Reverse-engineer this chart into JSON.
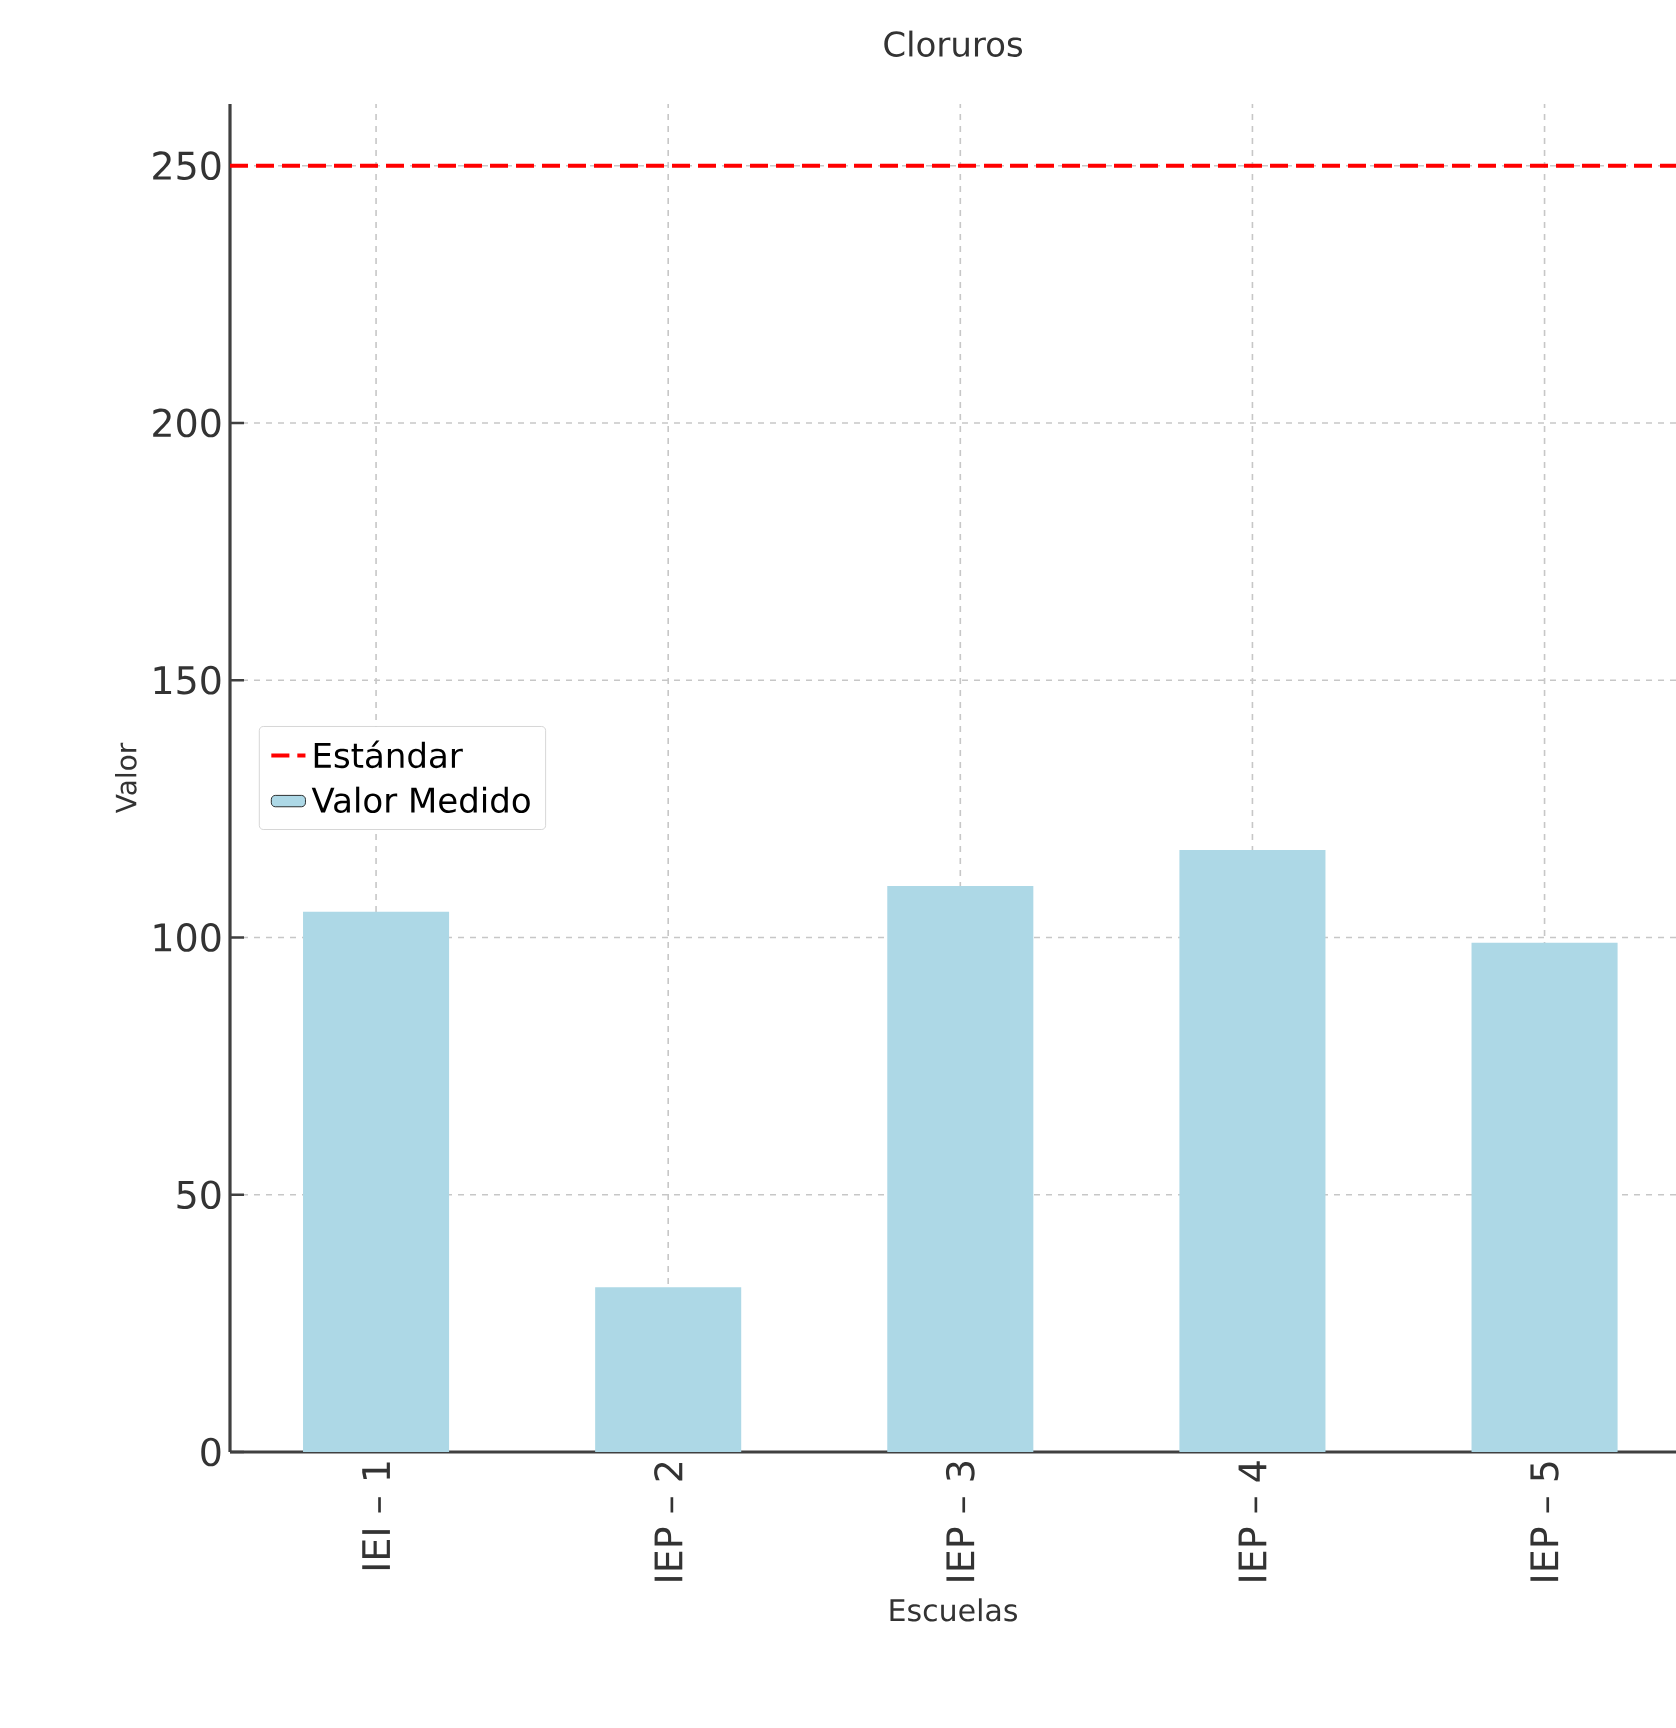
{
  "chart_data": {
    "type": "bar",
    "title": "Cloruros",
    "xlabel": "Escuelas",
    "ylabel": "Valor",
    "categories": [
      "IEI – 1",
      "IEP – 2",
      "IEP – 3",
      "IEP – 4",
      "IEP – 5"
    ],
    "series": [
      {
        "name": "Valor Medido",
        "color": "#add8e6",
        "values": [
          105,
          32,
          110,
          117,
          99
        ]
      }
    ],
    "ylim": [
      0,
      262
    ],
    "yticks": [
      0,
      50,
      100,
      150,
      200,
      250
    ],
    "grid": true,
    "legend": "left",
    "ref_lines": [
      {
        "axis": "y",
        "value": 250,
        "label": "Estándar",
        "color": "#ff0000",
        "line_style": "dashed"
      }
    ]
  }
}
